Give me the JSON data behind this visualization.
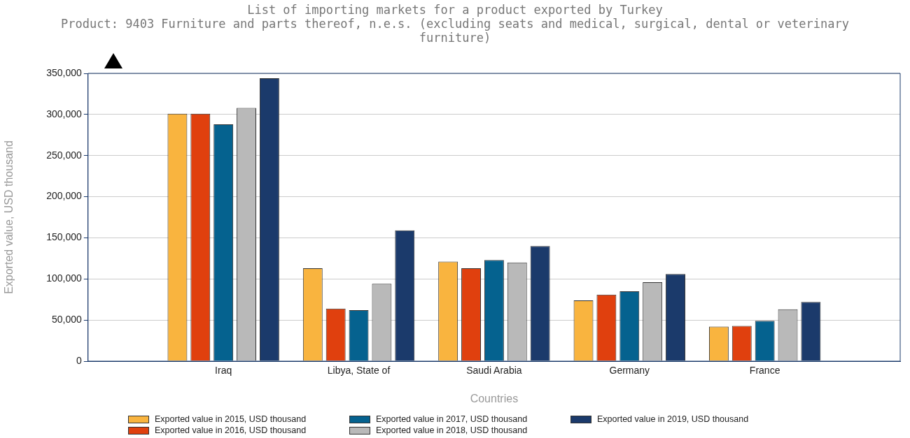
{
  "chart_data": {
    "type": "bar",
    "title": "List of importing markets for a product exported by Turkey",
    "subtitle": "Product: 9403 Furniture and parts thereof, n.e.s. (excluding seats and medical, surgical, dental or veterinary furniture)",
    "xlabel": "Countries",
    "ylabel": "Exported value, USD thousand",
    "categories": [
      "Iraq",
      "Libya, State of",
      "Saudi Arabia",
      "Germany",
      "France"
    ],
    "series": [
      {
        "name": "Exported value in 2015, USD thousand",
        "color": "#f9b43f",
        "values": [
          301000,
          113000,
          121000,
          74000,
          42000
        ]
      },
      {
        "name": "Exported value in 2016, USD thousand",
        "color": "#e0400e",
        "values": [
          301000,
          64000,
          113000,
          81000,
          43000
        ]
      },
      {
        "name": "Exported value in 2017, USD thousand",
        "color": "#05628f",
        "values": [
          288000,
          62000,
          123000,
          85000,
          49000
        ]
      },
      {
        "name": "Exported value in 2018, USD thousand",
        "color": "#b9b9b9",
        "values": [
          308000,
          94000,
          120000,
          96000,
          63000
        ]
      },
      {
        "name": "Exported value in 2019, USD thousand",
        "color": "#1b3a6b",
        "values": [
          344000,
          159000,
          140000,
          106000,
          72000
        ]
      }
    ],
    "ylim": [
      0,
      350000
    ],
    "yticks": [
      0,
      {
        "value": 50000,
        "label": "50,000"
      },
      {
        "value": 100000,
        "label": "100,000"
      },
      {
        "value": 150000,
        "label": "150,000"
      },
      {
        "value": 200000,
        "label": "200,000"
      },
      {
        "value": 250000,
        "label": "250,000"
      },
      {
        "value": 300000,
        "label": "300,000"
      },
      {
        "value": 350000,
        "label": "350,000"
      }
    ],
    "grid": "y",
    "legend": "bottom"
  }
}
